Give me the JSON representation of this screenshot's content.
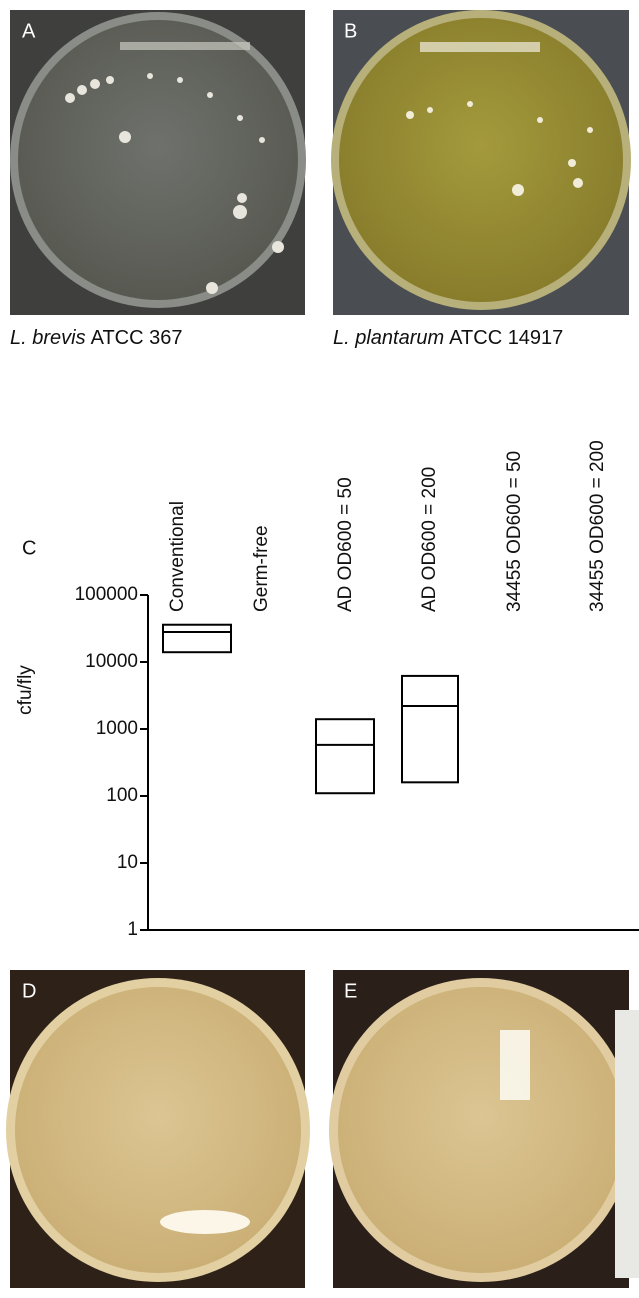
{
  "panels": [
    {
      "letter": "A",
      "caption_italic": "L. brevis",
      "caption_rest": "ATCC 367"
    },
    {
      "letter": "B",
      "caption_italic": "L. plantarum",
      "caption_rest": "ATCC 14917"
    },
    {
      "letter": "D"
    },
    {
      "letter": "E"
    }
  ],
  "chart_data": {
    "type": "box",
    "panel_letter": "C",
    "y_label": "cfu/fly",
    "categories": [
      "Conventional",
      "Germ-free",
      "AD OD600 = 50",
      "AD OD600 = 200",
      "34455 OD600 = 50",
      "34455 OD600 = 200"
    ],
    "low": [
      14000,
      null,
      110,
      160,
      null,
      null
    ],
    "median": [
      28000,
      null,
      580,
      2200,
      null,
      null
    ],
    "high": [
      36000,
      null,
      1400,
      6200,
      null,
      null
    ],
    "yscale": "log",
    "ylim": [
      1,
      100000
    ],
    "yticks": [
      1,
      10,
      100,
      1000,
      10000,
      100000
    ],
    "color": "#000000"
  }
}
